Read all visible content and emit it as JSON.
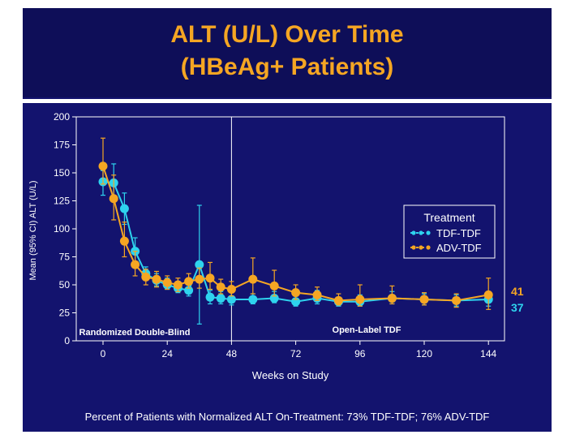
{
  "title": "ALT (U/L) Over Time",
  "subtitle": "(HBeAg+ Patients)",
  "footnote": "Percent of Patients with Normalized ALT On-Treatment: 73% TDF-TDF; 76% ADV-TDF",
  "colors": {
    "tdf": "#2ed3ee",
    "adv": "#f5a623",
    "title": "#f5a623",
    "background": "#13136e",
    "axis": "#ffffff"
  },
  "chart_data": {
    "type": "line",
    "xlabel": "Weeks on Study",
    "ylabel": "Mean (95% CI) ALT (U/L)",
    "xlim": [
      -10,
      150
    ],
    "ylim": [
      0,
      200
    ],
    "xticks": [
      0,
      24,
      48,
      72,
      96,
      120,
      144
    ],
    "yticks": [
      0,
      25,
      50,
      75,
      100,
      125,
      150,
      175,
      200
    ],
    "divider_x": 48,
    "legend_title": "Treatment",
    "legend_position": "right",
    "regions": [
      "Randomized Double-Blind",
      "Open-Label TDF"
    ],
    "end_labels": [
      "41",
      "37"
    ],
    "series": [
      {
        "name": "TDF-TDF",
        "color": "#2ed3ee",
        "x": [
          0,
          4,
          8,
          12,
          16,
          20,
          24,
          28,
          32,
          36,
          40,
          44,
          48,
          56,
          64,
          72,
          80,
          88,
          96,
          108,
          120,
          132,
          144
        ],
        "y": [
          142,
          141,
          118,
          80,
          60,
          54,
          50,
          47,
          45,
          68,
          39,
          38,
          37,
          37,
          38,
          35,
          38,
          35,
          35,
          38,
          37,
          36,
          37
        ],
        "lo": [
          130,
          126,
          104,
          70,
          54,
          49,
          46,
          43,
          40,
          15,
          33,
          33,
          32,
          33,
          34,
          31,
          33,
          31,
          31,
          33,
          32,
          31,
          31
        ],
        "hi": [
          152,
          158,
          132,
          92,
          66,
          60,
          56,
          52,
          50,
          121,
          45,
          44,
          44,
          42,
          44,
          40,
          45,
          39,
          41,
          44,
          42,
          41,
          43
        ]
      },
      {
        "name": "ADV-TDF",
        "color": "#f5a623",
        "x": [
          0,
          4,
          8,
          12,
          16,
          20,
          24,
          28,
          32,
          36,
          40,
          44,
          48,
          56,
          64,
          72,
          80,
          88,
          96,
          108,
          120,
          132,
          144
        ],
        "y": [
          156,
          127,
          89,
          68,
          57,
          55,
          52,
          50,
          53,
          55,
          56,
          48,
          46,
          55,
          49,
          43,
          41,
          36,
          37,
          38,
          37,
          36,
          41
        ],
        "lo": [
          140,
          108,
          75,
          58,
          50,
          48,
          46,
          44,
          47,
          47,
          46,
          42,
          40,
          42,
          40,
          37,
          36,
          32,
          31,
          33,
          32,
          30,
          28
        ],
        "hi": [
          181,
          148,
          106,
          80,
          64,
          62,
          58,
          56,
          60,
          65,
          70,
          55,
          53,
          74,
          63,
          50,
          48,
          42,
          50,
          49,
          43,
          42,
          56
        ]
      }
    ]
  }
}
